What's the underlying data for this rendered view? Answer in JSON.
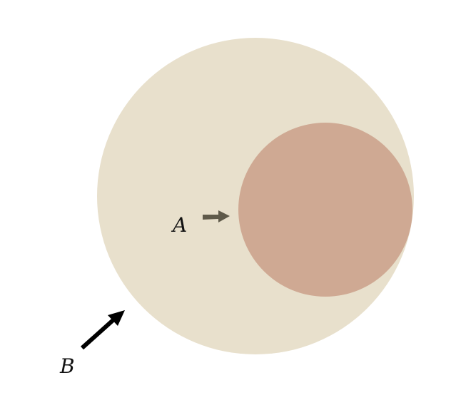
{
  "diagram": {
    "labels": {
      "a": "A",
      "b": "B"
    },
    "colors": {
      "background": "#ffffff",
      "outer_circle": "#e8e0cc",
      "inner_circle": "#cfa993",
      "arrow_a": "#5f5a4a",
      "arrow_b": "#000000",
      "label_text": "#111111"
    },
    "icons": {
      "arrow_a": "arrow-right-icon",
      "arrow_b": "arrow-up-right-icon"
    }
  }
}
